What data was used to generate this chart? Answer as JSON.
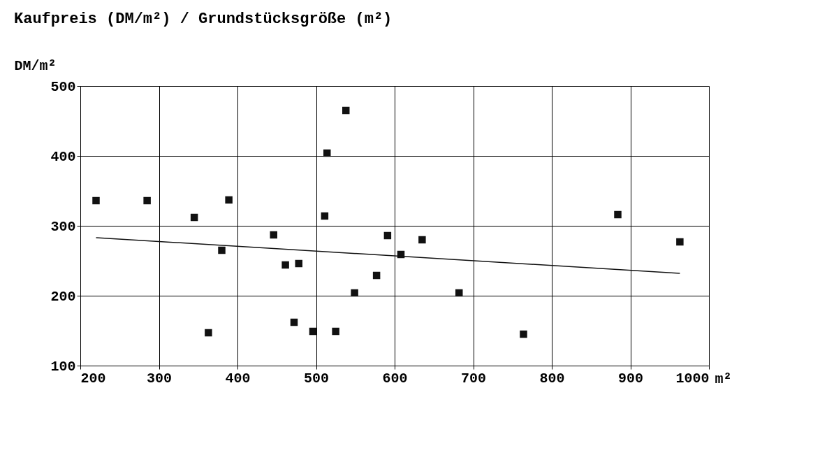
{
  "chart_data": {
    "type": "scatter",
    "title": "Kaufpreis (DM/m²) / Grundstücksgröße (m²)",
    "xlabel": "m²",
    "ylabel": "DM/m²",
    "xlim": [
      200,
      1000
    ],
    "xticks": [
      200,
      300,
      400,
      500,
      600,
      700,
      800,
      900,
      1000
    ],
    "ylim": [
      100,
      500
    ],
    "yticks": [
      100,
      200,
      300,
      400,
      500
    ],
    "grid": true,
    "marker": "square",
    "series": [
      {
        "color": "#111111",
        "x": [
          220,
          285,
          345,
          363,
          380,
          389,
          446,
          461,
          472,
          478,
          496,
          511,
          514,
          525,
          538,
          549,
          577,
          591,
          608,
          635,
          682,
          764,
          884,
          963
        ],
        "values": [
          336,
          336,
          312,
          147,
          265,
          337,
          287,
          244,
          162,
          246,
          149,
          314,
          404,
          149,
          465,
          204,
          229,
          286,
          259,
          280,
          204,
          145,
          316,
          277
        ]
      },
      {
        "type": "line",
        "color": "#111111",
        "line_style": "solid",
        "marker": "none",
        "x": [
          220,
          963
        ],
        "values": [
          283,
          232
        ]
      }
    ]
  }
}
